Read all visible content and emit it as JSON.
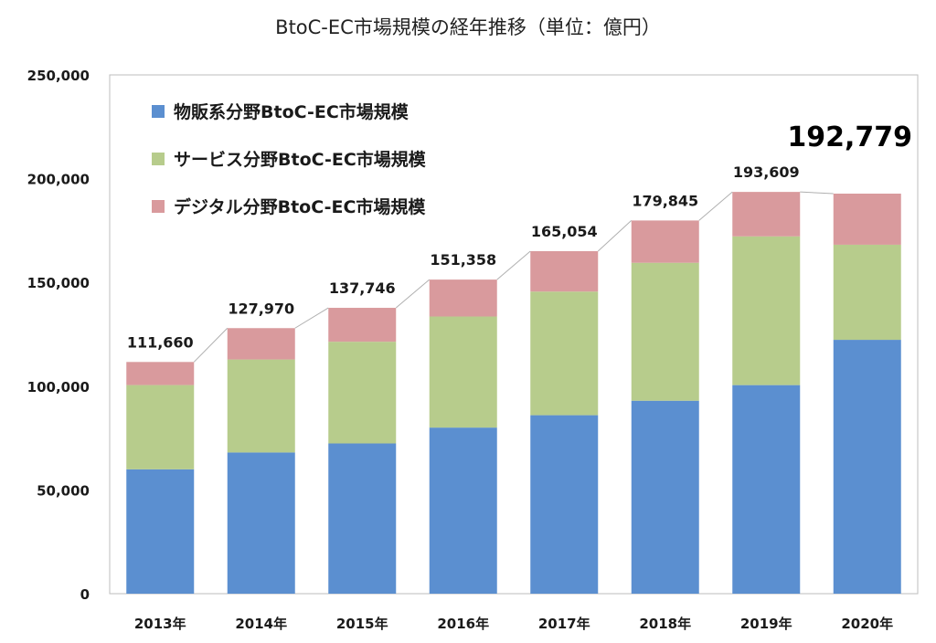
{
  "chart_data": {
    "type": "bar",
    "stacked": true,
    "title": "BtoC-EC市場規模の経年推移（単位：億円）",
    "categories": [
      "2013年",
      "2014年",
      "2015年",
      "2016年",
      "2017年",
      "2018年",
      "2019年",
      "2020年"
    ],
    "series": [
      {
        "name": "物販系分野BtoC-EC市場規模",
        "color": "#5b8fd0",
        "values": [
          59931,
          68043,
          72398,
          80043,
          86008,
          92992,
          100515,
          122333
        ]
      },
      {
        "name": "サービス分野BtoC-EC市場規模",
        "color": "#b7cc8c",
        "values": [
          40603,
          44816,
          49014,
          53532,
          59568,
          66471,
          71672,
          45832
        ]
      },
      {
        "name": "デジタル分野BtoC-EC市場規模",
        "color": "#d99a9d",
        "values": [
          11126,
          15111,
          16334,
          17782,
          19478,
          20382,
          21422,
          24614
        ]
      }
    ],
    "totals": [
      111660,
      127970,
      137746,
      151358,
      165054,
      179845,
      193609,
      192779
    ],
    "total_labels": [
      "111,660",
      "127,970",
      "137,746",
      "151,358",
      "165,054",
      "179,845",
      "193,609",
      "192,779"
    ],
    "y_ticks": [
      "0",
      "50,000",
      "100,000",
      "150,000",
      "200,000",
      "250,000"
    ],
    "ylim": [
      0,
      250000
    ],
    "grid": false,
    "legend_position": "top-left"
  }
}
